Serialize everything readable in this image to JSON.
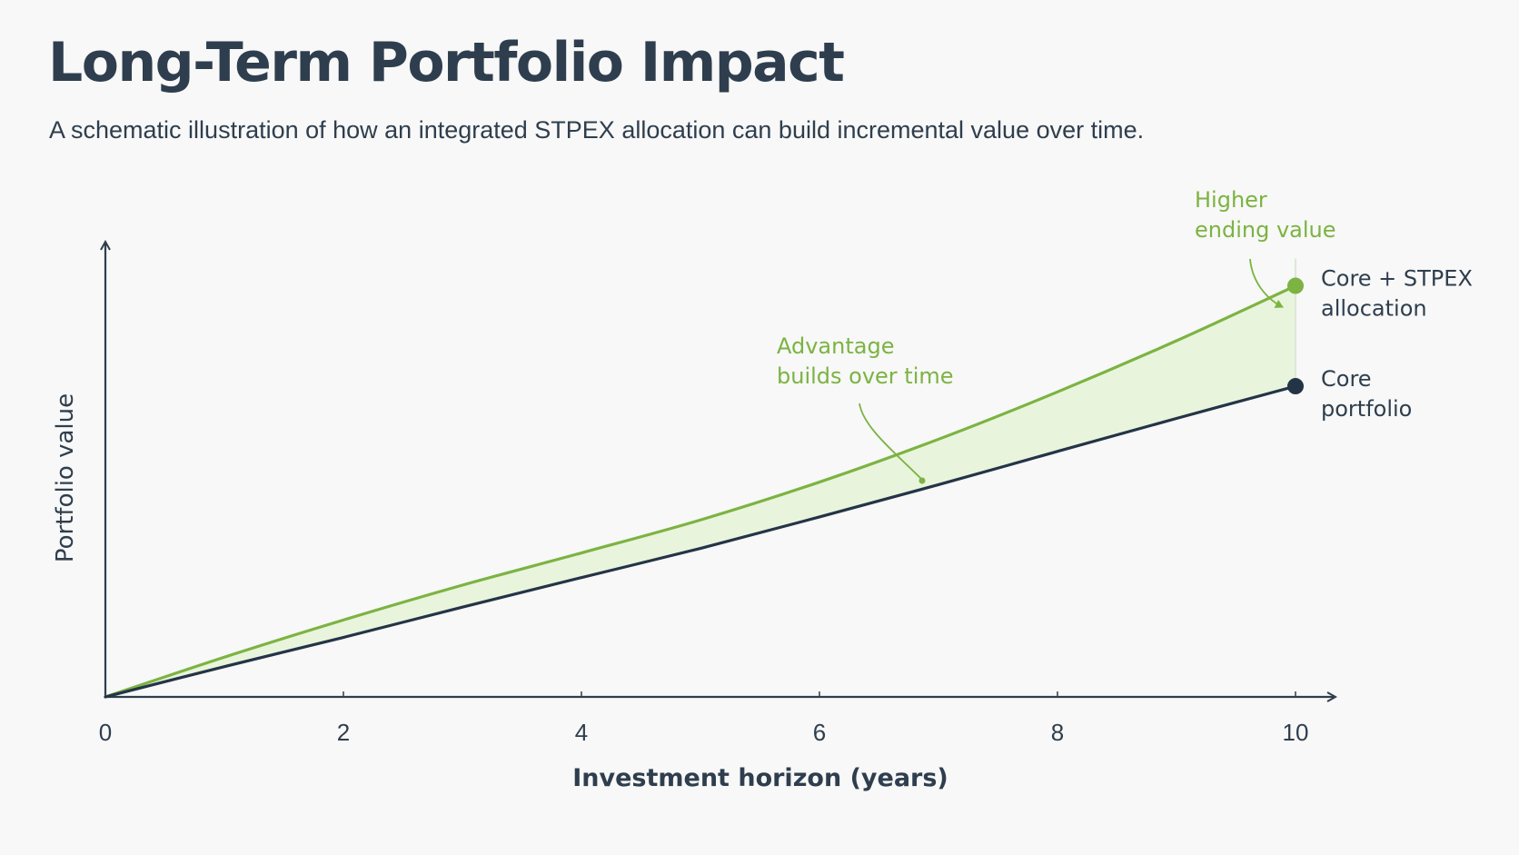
{
  "title": "Long-Term Portfolio Impact",
  "subtitle": "A schematic illustration of how an integrated STPEX allocation can build incremental value over time.",
  "chart_data": {
    "type": "area",
    "x": [
      0,
      1,
      2,
      3,
      4,
      5,
      6,
      7,
      8,
      9,
      10
    ],
    "xlabel": "Investment horizon (years)",
    "ylabel": "Portfolio value",
    "xlim": [
      0,
      10.3
    ],
    "ylim": [
      0,
      100
    ],
    "xticks": [
      "0",
      "2",
      "4",
      "6",
      "8",
      "10"
    ],
    "yticks": [],
    "grid": false,
    "series": [
      {
        "name_lines": [
          "Core + STPEX",
          "allocation"
        ],
        "color": "#7cb342",
        "values": [
          0,
          10.5,
          20.3,
          29.5,
          38.0,
          46.7,
          56.7,
          68.0,
          80.5,
          94.0,
          108.5
        ]
      },
      {
        "name_lines": [
          "Core",
          "portfolio"
        ],
        "color": "#243447",
        "values": [
          0,
          8.0,
          15.7,
          23.7,
          31.5,
          39.2,
          47.5,
          56.0,
          64.8,
          73.5,
          82.0
        ]
      }
    ],
    "fill_between": {
      "color": "#e9f4dc",
      "series": [
        0,
        1
      ]
    },
    "annotations": [
      {
        "lines": [
          "Advantage",
          "builds over time"
        ],
        "color": "#7cb342"
      },
      {
        "lines": [
          "Higher",
          "ending value"
        ],
        "color": "#7cb342"
      }
    ]
  },
  "colors": {
    "text": "#2f3e4e",
    "green": "#7cb342",
    "dark": "#243447",
    "fill": "#e9f4dc",
    "background": "#f7f8f7"
  }
}
